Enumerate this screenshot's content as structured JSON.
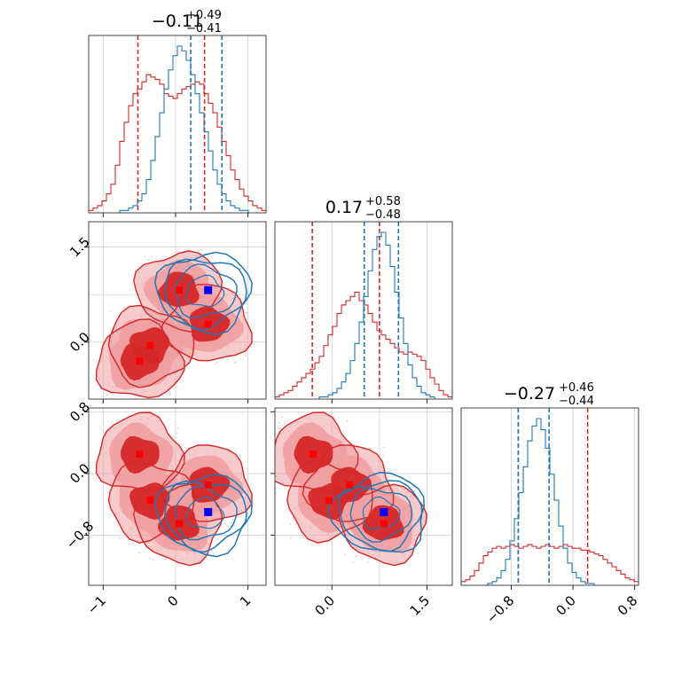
{
  "chart_data": {
    "type": "corner",
    "titles": [
      {
        "main": "−0.11",
        "sup": "+0.49",
        "sub": "−0.41"
      },
      {
        "main": "0.17",
        "sup": "+0.58",
        "sub": "−0.48"
      },
      {
        "main": "−0.27",
        "sup": "+0.46",
        "sub": "−0.44"
      }
    ],
    "params": [
      {
        "range": [
          -1.2,
          1.25
        ],
        "ticks": [
          -1,
          0,
          1
        ],
        "tick_labels": [
          "−1",
          "0",
          "1"
        ],
        "grid": [
          -1,
          0,
          1
        ]
      },
      {
        "range": [
          -0.9,
          1.9
        ],
        "ticks": [
          0.0,
          1.5
        ],
        "tick_labels": [
          "0.0",
          "1.5"
        ],
        "grid": [
          0.0,
          0.75,
          1.5
        ]
      },
      {
        "range": [
          -1.45,
          0.85
        ],
        "ticks": [
          -0.8,
          0.0,
          0.8
        ],
        "tick_labels": [
          "−0.8",
          "0.0",
          "0.8"
        ],
        "grid": [
          -0.8,
          0.0,
          0.8
        ]
      }
    ],
    "colors": {
      "red": "#d62728",
      "red_light": "#f0a0a2",
      "blue": "#1f77b4",
      "blue_marker": "#0000ff",
      "grid": "#d0d0d0"
    },
    "series": [
      {
        "name": "",
        "color": "#d62728",
        "quantiles": [
          [
            -0.52,
            0.4
          ],
          [
            -0.31,
            0.75
          ],
          [
            -0.71,
            0.19
          ]
        ],
        "hist": [
          [
            1,
            2,
            3,
            5,
            8,
            12,
            20,
            30,
            38,
            45,
            50,
            52,
            55,
            58,
            57,
            56,
            54,
            50,
            49,
            48,
            50,
            52,
            53,
            54,
            55,
            54,
            50,
            46,
            42,
            36,
            30,
            24,
            18,
            14,
            10,
            7,
            5,
            3,
            2,
            1
          ],
          [
            1,
            2,
            3,
            4,
            6,
            8,
            10,
            12,
            14,
            17,
            20,
            25,
            30,
            34,
            40,
            44,
            46,
            48,
            50,
            46,
            44,
            40,
            36,
            32,
            30,
            28,
            26,
            24,
            22,
            21,
            22,
            21,
            20,
            18,
            14,
            10,
            7,
            4,
            2,
            1
          ],
          [
            2,
            3,
            5,
            8,
            12,
            16,
            18,
            20,
            21,
            20,
            21,
            22,
            21,
            20,
            21,
            22,
            21,
            20,
            21,
            22,
            21,
            20,
            21,
            22,
            21,
            20,
            20,
            19,
            19,
            18,
            17,
            16,
            14,
            12,
            10,
            8,
            6,
            4,
            3,
            2
          ]
        ],
        "peaks_ab": [
          [
            -0.5,
            -0.3
          ],
          [
            -0.35,
            -0.05
          ],
          [
            0.05,
            0.82
          ],
          [
            0.45,
            0.28
          ]
        ],
        "peaks_ac": [
          [
            -0.5,
            0.25
          ],
          [
            -0.35,
            -0.35
          ],
          [
            0.05,
            -0.65
          ],
          [
            0.45,
            -0.15
          ]
        ],
        "peaks_bc": [
          [
            -0.3,
            0.25
          ],
          [
            -0.05,
            -0.35
          ],
          [
            0.82,
            -0.65
          ],
          [
            0.28,
            -0.15
          ]
        ]
      },
      {
        "name": "",
        "color": "#1f77b4",
        "quantiles": [
          [
            0.21,
            0.64
          ],
          [
            0.51,
            1.05
          ],
          [
            -0.71,
            -0.31
          ]
        ],
        "hist": [
          [
            0,
            0,
            0,
            0,
            0,
            0,
            0,
            1,
            1,
            2,
            3,
            5,
            8,
            14,
            22,
            32,
            42,
            52,
            60,
            66,
            70,
            68,
            64,
            58,
            50,
            42,
            34,
            26,
            18,
            12,
            8,
            5,
            3,
            2,
            1,
            1,
            0,
            0,
            0,
            0
          ],
          [
            0,
            0,
            0,
            0,
            0,
            0,
            0,
            0,
            0,
            0,
            1,
            1,
            2,
            3,
            5,
            8,
            12,
            18,
            26,
            36,
            48,
            60,
            70,
            76,
            78,
            72,
            62,
            50,
            38,
            26,
            16,
            10,
            6,
            3,
            2,
            1,
            0,
            0,
            0,
            0
          ],
          [
            0,
            0,
            0,
            0,
            0,
            0,
            1,
            2,
            4,
            8,
            14,
            24,
            36,
            50,
            64,
            78,
            86,
            90,
            84,
            74,
            60,
            46,
            32,
            20,
            12,
            7,
            4,
            2,
            1,
            1,
            0,
            0,
            0,
            0,
            0,
            0,
            0,
            0,
            0,
            0
          ]
        ],
        "marker_ab": [
          0.45,
          0.82
        ],
        "marker_ac": [
          0.45,
          -0.5
        ],
        "marker_bc": [
          0.82,
          -0.5
        ]
      }
    ]
  }
}
